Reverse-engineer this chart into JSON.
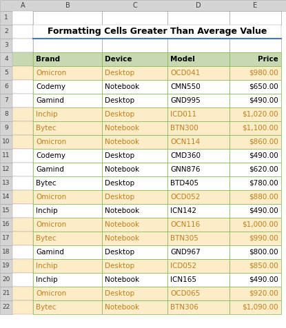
{
  "title": "Formatting Cells Greater Than Average Value",
  "headers": [
    "Brand",
    "Device",
    "Model",
    "Price"
  ],
  "rows": [
    [
      "Omicron",
      "Desktop",
      "OCD041",
      "$980.00"
    ],
    [
      "Codemy",
      "Notebook",
      "CMN550",
      "$650.00"
    ],
    [
      "Gamind",
      "Desktop",
      "GND995",
      "$490.00"
    ],
    [
      "Inchip",
      "Desktop",
      "ICD011",
      "$1,020.00"
    ],
    [
      "Bytec",
      "Notebook",
      "BTN300",
      "$1,100.00"
    ],
    [
      "Omicron",
      "Notebook",
      "OCN114",
      "$860.00"
    ],
    [
      "Codemy",
      "Desktop",
      "CMD360",
      "$490.00"
    ],
    [
      "Gamind",
      "Notebook",
      "GNN876",
      "$620.00"
    ],
    [
      "Bytec",
      "Desktop",
      "BTD405",
      "$780.00"
    ],
    [
      "Omicron",
      "Desktop",
      "OCD052",
      "$880.00"
    ],
    [
      "Inchip",
      "Notebook",
      "ICN142",
      "$490.00"
    ],
    [
      "Omicron",
      "Notebook",
      "OCN116",
      "$1,000.00"
    ],
    [
      "Bytec",
      "Notebook",
      "BTN305",
      "$990.00"
    ],
    [
      "Gamind",
      "Desktop",
      "GND967",
      "$800.00"
    ],
    [
      "Inchip",
      "Desktop",
      "ICD052",
      "$850.00"
    ],
    [
      "Inchip",
      "Notebook",
      "ICN165",
      "$490.00"
    ],
    [
      "Omicron",
      "Desktop",
      "OCD065",
      "$920.00"
    ],
    [
      "Bytec",
      "Notebook",
      "BTN306",
      "$1,090.00"
    ]
  ],
  "prices": [
    980,
    650,
    490,
    1020,
    1100,
    860,
    490,
    620,
    780,
    880,
    490,
    1000,
    990,
    800,
    850,
    490,
    920,
    1090
  ],
  "header_bg": "#c6d9b0",
  "highlight_bg": "#fdecc8",
  "normal_bg": "#ffffff",
  "header_text_color": "#000000",
  "normal_text_color": "#000000",
  "highlight_text_color": "#c47d17",
  "border_color": "#7ab648",
  "title_color": "#000000",
  "gray_bg": "#d4d4d4",
  "gray_border": "#a0a0a0",
  "title_underline_color": "#4472c4"
}
